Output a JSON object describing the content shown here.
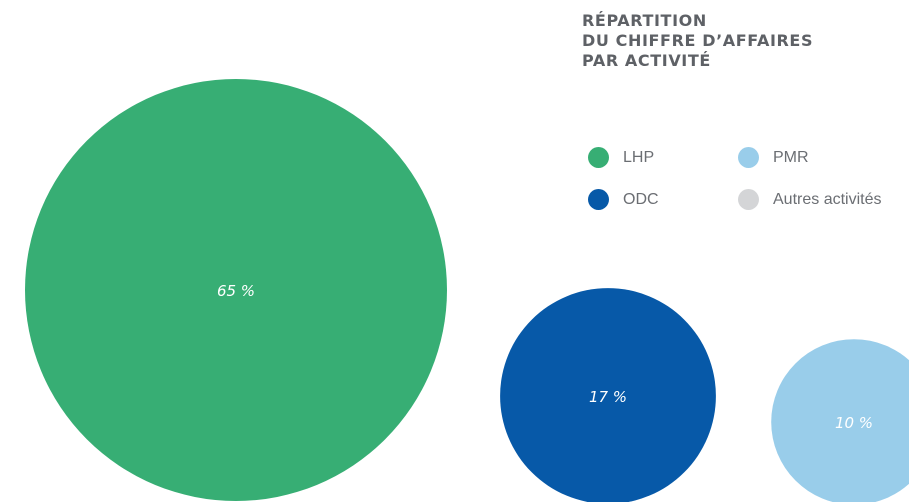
{
  "chart_data": {
    "type": "bubble",
    "title_lines": [
      "RÉPARTITION",
      "DU CHIFFRE D’AFFAIRES",
      "PAR ACTIVITÉ"
    ],
    "series": [
      {
        "name": "LHP",
        "value": 65,
        "label": "65 %",
        "color": "#37ae74"
      },
      {
        "name": "ODC",
        "value": 17,
        "label": "17 %",
        "color": "#0759a8"
      },
      {
        "name": "PMR",
        "value": 10,
        "label": "10 %",
        "color": "#99cdea"
      },
      {
        "name": "Autres activités",
        "value": null,
        "label": "",
        "color": "#d4d5d7"
      }
    ],
    "legend_position": "top-right"
  }
}
